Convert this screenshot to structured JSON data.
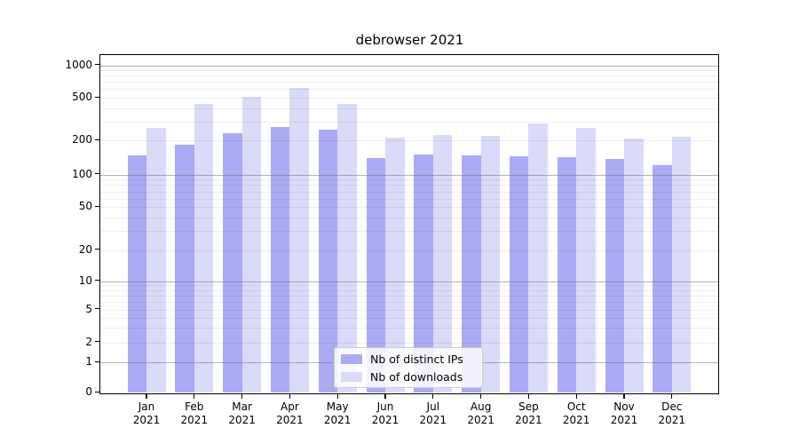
{
  "title": "debrowser 2021",
  "chart_data": {
    "type": "bar",
    "title": "debrowser 2021",
    "categories": [
      "Jan 2021",
      "Feb 2021",
      "Mar 2021",
      "Apr 2021",
      "May 2021",
      "Jun 2021",
      "Jul 2021",
      "Aug 2021",
      "Sep 2021",
      "Oct 2021",
      "Nov 2021",
      "Dec 2021"
    ],
    "series": [
      {
        "name": "Nb of distinct IPs",
        "color": "#aaaaf5",
        "values": [
          147,
          185,
          235,
          265,
          252,
          140,
          152,
          148,
          145,
          142,
          137,
          121
        ]
      },
      {
        "name": "Nb of downloads",
        "color": "#dadaf9",
        "values": [
          260,
          435,
          510,
          615,
          435,
          213,
          225,
          220,
          290,
          262,
          210,
          215
        ]
      }
    ],
    "xlabel": "",
    "ylabel": "",
    "yscale": "symlog",
    "y_ticks": [
      1000,
      500,
      200,
      100,
      50,
      20,
      10,
      5,
      2,
      1,
      0
    ],
    "ylim": [
      0,
      1250
    ],
    "grid": true,
    "legend_position": "lower center"
  }
}
